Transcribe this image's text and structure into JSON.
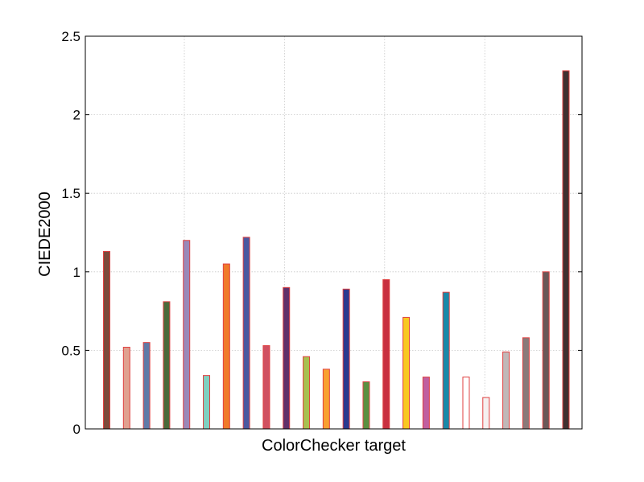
{
  "chart_data": {
    "type": "bar",
    "title": "",
    "xlabel": "ColorChecker target",
    "ylabel": "CIEDE2000",
    "ylim": [
      0,
      2.5
    ],
    "yticks": [
      0,
      0.5,
      1,
      1.5,
      2,
      2.5
    ],
    "ytick_labels": [
      "0",
      "0.5",
      "1",
      "1.5",
      "2",
      "2.5"
    ],
    "grid": true,
    "legend": "none",
    "x_tick_labels_shown": false,
    "values": [
      1.13,
      0.52,
      0.55,
      0.81,
      1.2,
      0.34,
      1.05,
      1.22,
      0.53,
      0.9,
      0.46,
      0.38,
      0.89,
      0.3,
      0.95,
      0.71,
      0.33,
      0.87,
      0.33,
      0.2,
      0.49,
      0.58,
      1.0,
      2.28
    ],
    "colors": [
      "#7d4a3b",
      "#e0a08f",
      "#5e7aa8",
      "#4a6a3a",
      "#9a88b8",
      "#7fd0c0",
      "#f07a2a",
      "#4a58a0",
      "#d05060",
      "#60306a",
      "#a8c050",
      "#f8a030",
      "#2a3a90",
      "#5a9040",
      "#c83040",
      "#f8c820",
      "#c060a0",
      "#1a88a8",
      "#ffffff",
      "#f5f0f0",
      "#c0b8b8",
      "#8a7a7a",
      "#6a5858",
      "#403030"
    ],
    "edge_color": "#e04040"
  }
}
